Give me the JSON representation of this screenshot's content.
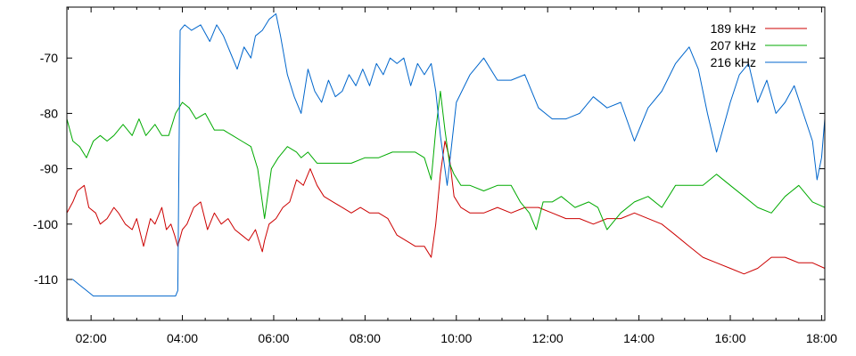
{
  "chart_data": {
    "type": "line",
    "title": "",
    "xlabel": "",
    "ylabel": "",
    "x_axis": {
      "unit": "hours",
      "range": [
        1.47,
        18.07
      ],
      "ticks": [
        2,
        4,
        6,
        8,
        10,
        12,
        14,
        16,
        18
      ],
      "tick_labels": [
        "02:00",
        "04:00",
        "06:00",
        "08:00",
        "10:00",
        "12:00",
        "14:00",
        "16:00",
        "18:00"
      ]
    },
    "y_axis": {
      "range": [
        -117.4,
        -60.8
      ],
      "ticks": [
        -110,
        -100,
        -90,
        -80,
        -70
      ],
      "tick_labels": [
        "-110",
        "-100",
        "-90",
        "-80",
        "-70"
      ]
    },
    "grid": false,
    "legend": "top-right",
    "series": [
      {
        "name": "189 kHz",
        "color": "#cc0000",
        "x": [
          1.47,
          1.6,
          1.7,
          1.85,
          1.95,
          2.1,
          2.2,
          2.35,
          2.5,
          2.6,
          2.75,
          2.9,
          3.0,
          3.15,
          3.3,
          3.4,
          3.55,
          3.65,
          3.75,
          3.83,
          3.9,
          4.0,
          4.1,
          4.25,
          4.4,
          4.55,
          4.7,
          4.85,
          5.0,
          5.15,
          5.3,
          5.45,
          5.6,
          5.75,
          5.8,
          5.9,
          6.05,
          6.2,
          6.35,
          6.5,
          6.65,
          6.8,
          6.95,
          7.1,
          7.3,
          7.5,
          7.7,
          7.9,
          8.1,
          8.3,
          8.5,
          8.7,
          8.9,
          9.1,
          9.3,
          9.45,
          9.55,
          9.65,
          9.75,
          9.85,
          9.95,
          10.1,
          10.3,
          10.6,
          10.9,
          11.2,
          11.5,
          11.8,
          12.1,
          12.4,
          12.7,
          13.0,
          13.3,
          13.6,
          13.9,
          14.2,
          14.5,
          14.8,
          15.1,
          15.4,
          15.7,
          16.0,
          16.3,
          16.6,
          16.9,
          17.2,
          17.5,
          17.8,
          18.07
        ],
        "y": [
          -98,
          -96,
          -94,
          -93,
          -97,
          -98,
          -100,
          -99,
          -97,
          -98,
          -100,
          -101,
          -99,
          -104,
          -99,
          -100,
          -97,
          -101,
          -100,
          -102,
          -104,
          -101,
          -100,
          -97,
          -96,
          -101,
          -98,
          -100,
          -99,
          -101,
          -102,
          -103,
          -101,
          -105,
          -103,
          -100,
          -99,
          -97,
          -96,
          -92,
          -93,
          -90,
          -93,
          -95,
          -96,
          -97,
          -98,
          -97,
          -98,
          -98,
          -99,
          -102,
          -103,
          -104,
          -104,
          -106,
          -100,
          -91,
          -85,
          -88,
          -95,
          -97,
          -98,
          -98,
          -97,
          -98,
          -97,
          -97,
          -98,
          -99,
          -99,
          -100,
          -99,
          -99,
          -98,
          -99,
          -100,
          -102,
          -104,
          -106,
          -107,
          -108,
          -109,
          -108,
          -106,
          -106,
          -107,
          -107,
          -108
        ],
        "ylim_note": ""
      },
      {
        "name": "207 kHz",
        "color": "#00aa00",
        "x": [
          1.47,
          1.6,
          1.75,
          1.9,
          2.05,
          2.2,
          2.35,
          2.5,
          2.7,
          2.9,
          3.05,
          3.2,
          3.4,
          3.55,
          3.7,
          3.85,
          4.0,
          4.15,
          4.3,
          4.5,
          4.7,
          4.9,
          5.1,
          5.3,
          5.5,
          5.65,
          5.8,
          5.95,
          6.1,
          6.3,
          6.5,
          6.6,
          6.75,
          6.95,
          7.15,
          7.4,
          7.7,
          8.0,
          8.3,
          8.6,
          8.9,
          9.1,
          9.3,
          9.45,
          9.55,
          9.65,
          9.75,
          9.85,
          9.95,
          10.1,
          10.3,
          10.6,
          10.9,
          11.2,
          11.4,
          11.6,
          11.75,
          11.9,
          12.1,
          12.3,
          12.6,
          12.9,
          13.1,
          13.3,
          13.6,
          13.9,
          14.2,
          14.5,
          14.8,
          15.1,
          15.4,
          15.7,
          16.0,
          16.3,
          16.6,
          16.9,
          17.2,
          17.5,
          17.8,
          18.07
        ],
        "y": [
          -81,
          -85,
          -86,
          -88,
          -85,
          -84,
          -85,
          -84,
          -82,
          -84,
          -81,
          -84,
          -82,
          -84,
          -84,
          -80,
          -78,
          -79,
          -81,
          -80,
          -83,
          -83,
          -84,
          -85,
          -86,
          -90,
          -99,
          -90,
          -88,
          -86,
          -87,
          -88,
          -87,
          -89,
          -89,
          -89,
          -89,
          -88,
          -88,
          -87,
          -87,
          -87,
          -88,
          -92,
          -83,
          -76,
          -83,
          -89,
          -91,
          -93,
          -93,
          -94,
          -93,
          -93,
          -96,
          -98,
          -101,
          -96,
          -96,
          -95,
          -97,
          -96,
          -97,
          -101,
          -98,
          -96,
          -95,
          -97,
          -93,
          -93,
          -93,
          -91,
          -93,
          -95,
          -97,
          -98,
          -95,
          -93,
          -96,
          -97
        ]
      },
      {
        "name": "216 kHz",
        "color": "#0066cc",
        "x": [
          1.47,
          1.6,
          1.75,
          1.9,
          2.05,
          2.2,
          2.5,
          2.8,
          3.1,
          3.4,
          3.7,
          3.85,
          3.9,
          3.95,
          4.05,
          4.2,
          4.4,
          4.6,
          4.75,
          4.9,
          5.05,
          5.2,
          5.35,
          5.5,
          5.6,
          5.75,
          5.9,
          6.05,
          6.15,
          6.3,
          6.45,
          6.6,
          6.75,
          6.9,
          7.05,
          7.2,
          7.35,
          7.5,
          7.65,
          7.8,
          7.95,
          8.1,
          8.25,
          8.4,
          8.55,
          8.7,
          8.85,
          9.0,
          9.15,
          9.3,
          9.45,
          9.55,
          9.65,
          9.8,
          10.0,
          10.3,
          10.6,
          10.9,
          11.2,
          11.5,
          11.8,
          12.1,
          12.4,
          12.7,
          13.0,
          13.3,
          13.6,
          13.9,
          14.2,
          14.5,
          14.8,
          15.1,
          15.3,
          15.5,
          15.7,
          16.0,
          16.2,
          16.4,
          16.6,
          16.8,
          17.0,
          17.2,
          17.4,
          17.6,
          17.8,
          17.9,
          18.0,
          18.07
        ],
        "y": [
          -110,
          -110,
          -111,
          -112,
          -113,
          -113,
          -113,
          -113,
          -113,
          -113,
          -113,
          -113,
          -112,
          -65,
          -64,
          -65,
          -64,
          -67,
          -64,
          -66,
          -69,
          -72,
          -68,
          -70,
          -66,
          -65,
          -63,
          -62,
          -66,
          -73,
          -77,
          -80,
          -72,
          -76,
          -78,
          -74,
          -77,
          -76,
          -73,
          -75,
          -72,
          -75,
          -71,
          -73,
          -70,
          -71,
          -70,
          -75,
          -71,
          -73,
          -71,
          -76,
          -84,
          -93,
          -78,
          -73,
          -70,
          -74,
          -74,
          -73,
          -79,
          -81,
          -81,
          -80,
          -77,
          -79,
          -78,
          -85,
          -79,
          -76,
          -71,
          -68,
          -72,
          -80,
          -87,
          -78,
          -73,
          -71,
          -78,
          -74,
          -80,
          -78,
          -75,
          -80,
          -85,
          -92,
          -88,
          -81
        ]
      }
    ]
  }
}
